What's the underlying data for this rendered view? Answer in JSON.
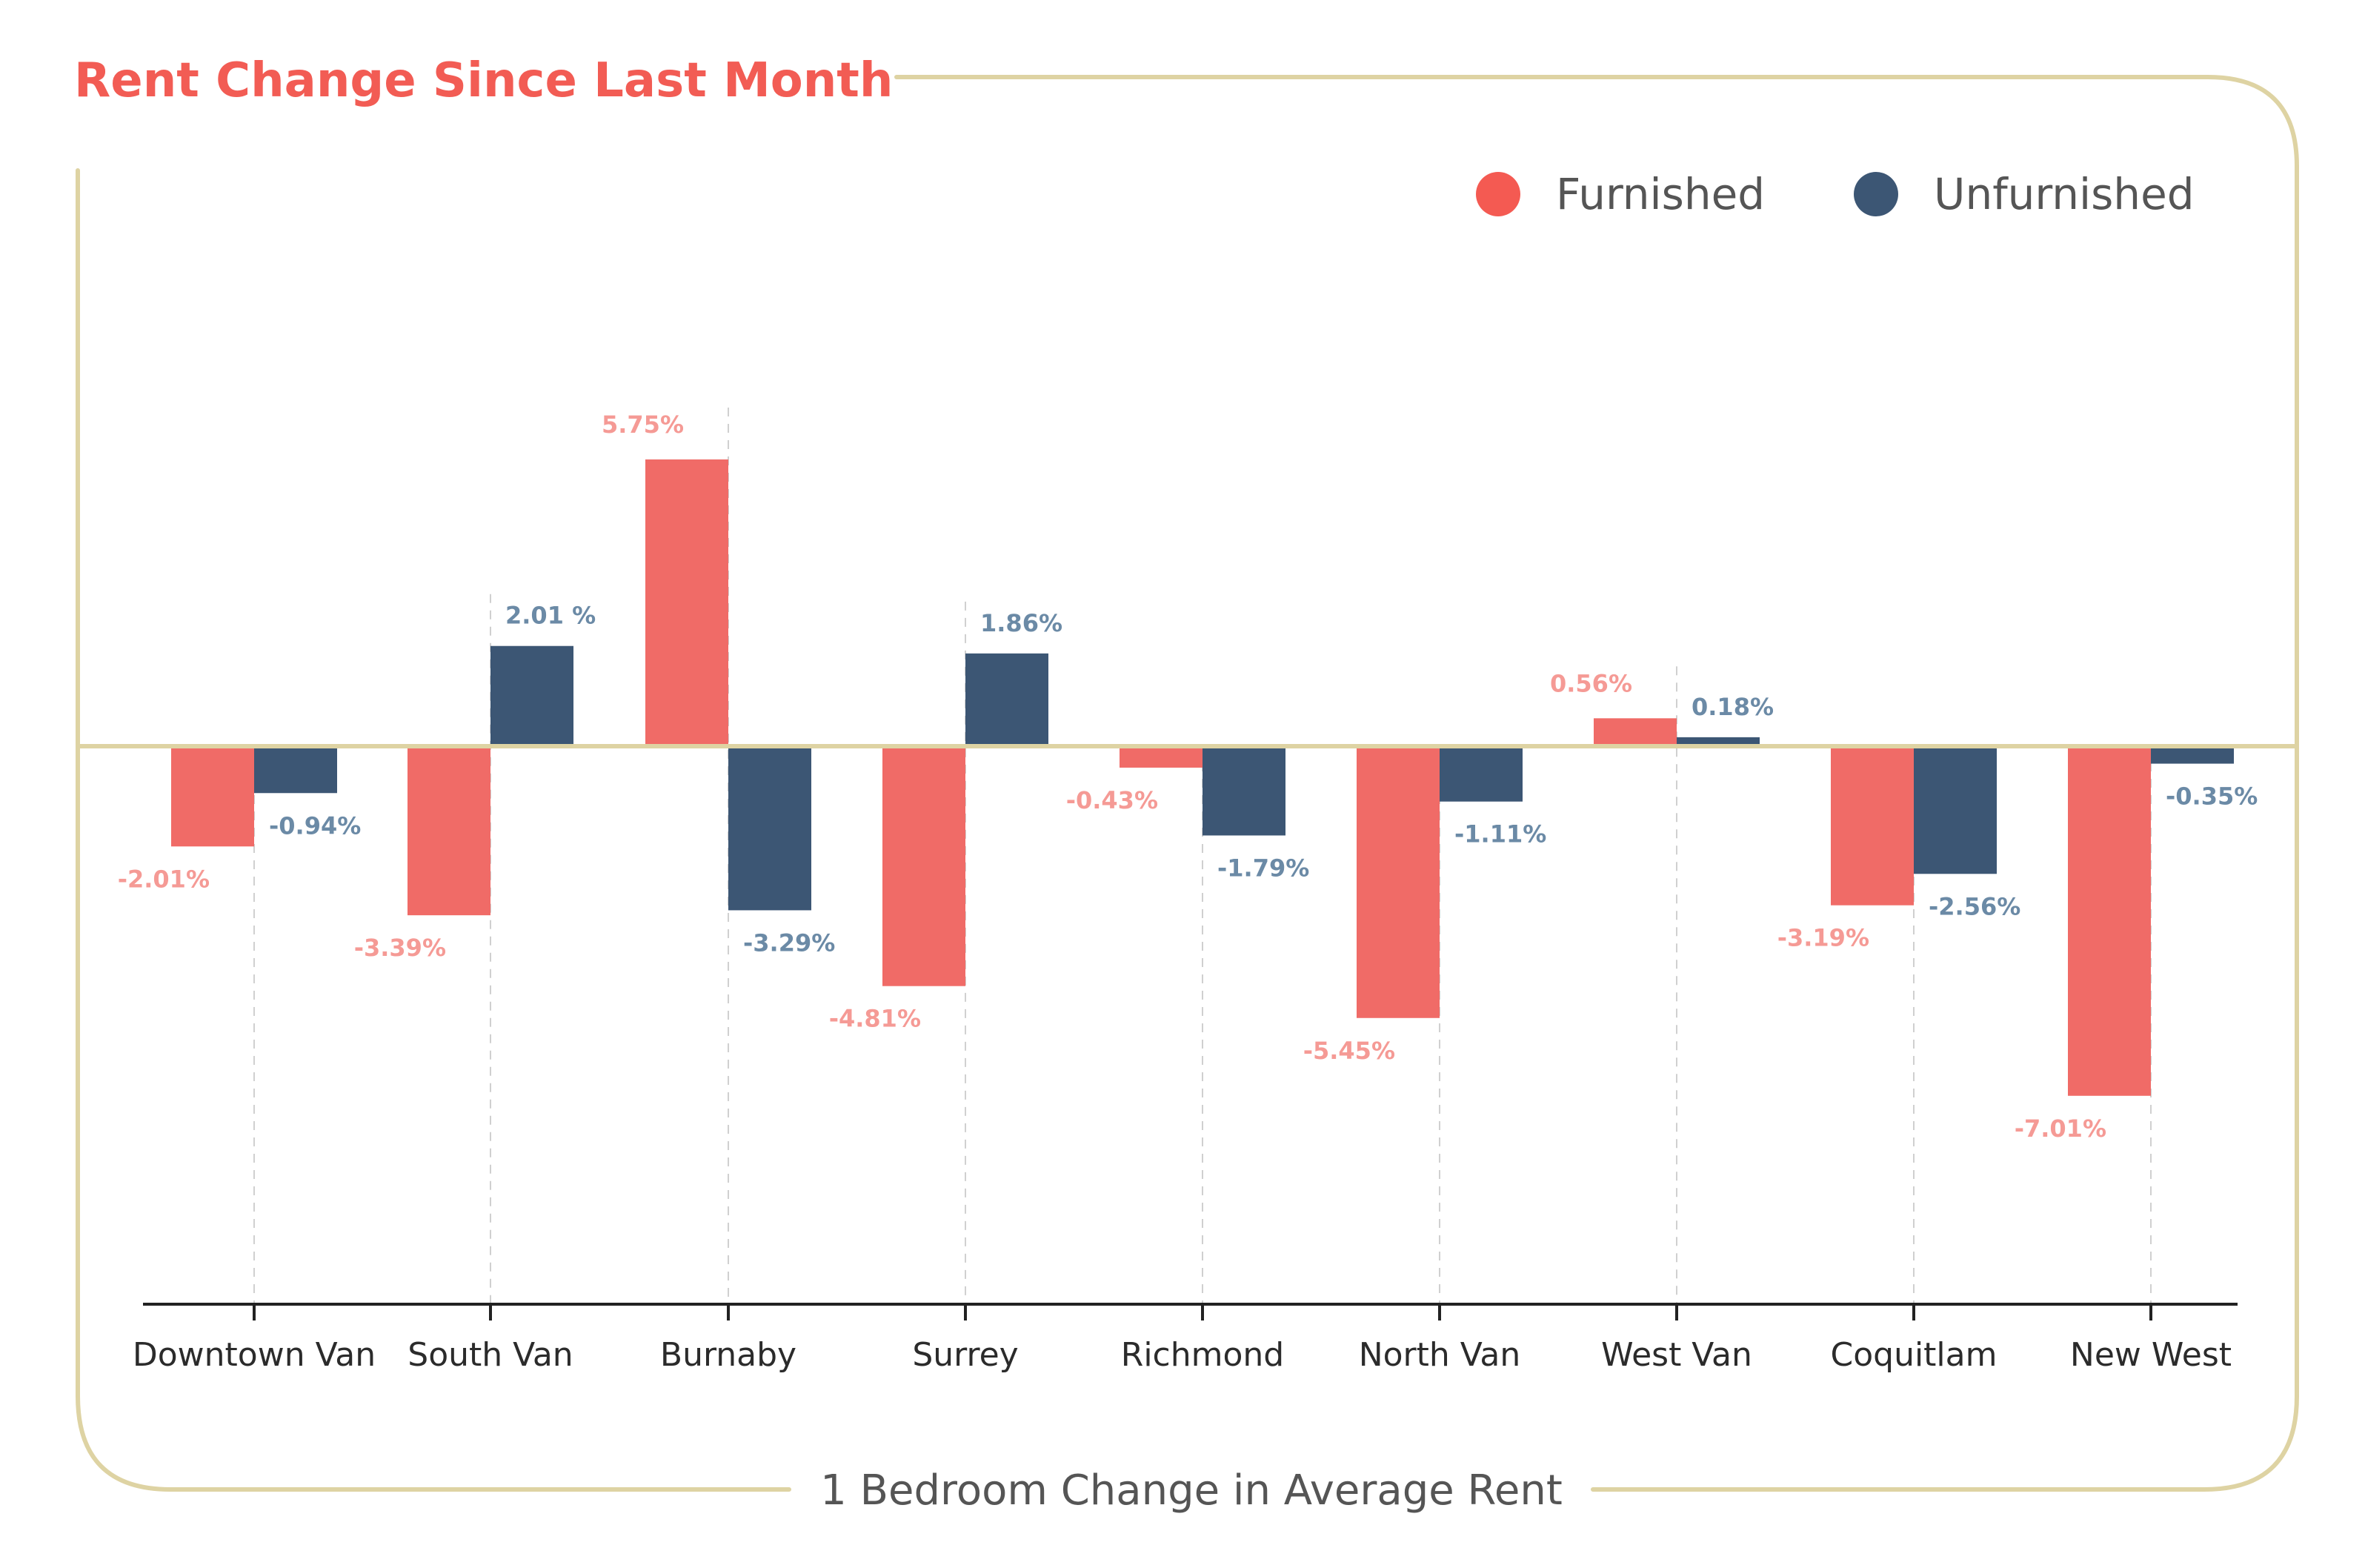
{
  "header": {
    "title": "Rent Change Since Last Month"
  },
  "footer": {
    "title": "1 Bedroom Change in Average Rent"
  },
  "legend": {
    "placement": "top-right",
    "items": [
      {
        "label": "Furnished"
      },
      {
        "label": "Unfurnished"
      }
    ]
  },
  "colors": {
    "title": "#f25c54",
    "frame": "#ded3a3",
    "furnished": "#f06b67",
    "furnished_label": "#f59a95",
    "furnished_dot": "#f45a52",
    "unfurnished": "#3c5674",
    "unfurnished_label": "#6b8aa6",
    "axis": "#222222",
    "guide": "#d0d0d0"
  },
  "chart_data": {
    "type": "bar",
    "title": "Rent Change Since Last Month",
    "xlabel": "1 Bedroom Change in Average Rent",
    "ylabel": "",
    "grid": false,
    "ylim": [
      -9.9,
      10.8
    ],
    "categories": [
      "Downtown Van",
      "South Van",
      "Burnaby",
      "Surrey",
      "Richmond",
      "North Van",
      "West Van",
      "Coquitlam",
      "New West"
    ],
    "series": [
      {
        "name": "Furnished",
        "values": [
          -2.01,
          -3.39,
          5.75,
          -4.81,
          -0.43,
          -5.45,
          0.56,
          -3.19,
          -7.01
        ],
        "labels": [
          "-2.01%",
          "-3.39%",
          "5.75%",
          "-4.81%",
          "-0.43%",
          "-5.45%",
          "0.56%",
          "-3.19%",
          "-7.01%"
        ]
      },
      {
        "name": "Unfurnished",
        "values": [
          -0.94,
          2.01,
          -3.29,
          1.86,
          -1.79,
          -1.11,
          0.18,
          -2.56,
          -0.35
        ],
        "labels": [
          "-0.94%",
          "2.01 %",
          "-3.29%",
          "1.86%",
          "-1.79%",
          "-1.11%",
          "0.18%",
          "-2.56%",
          "-0.35%"
        ]
      }
    ]
  }
}
